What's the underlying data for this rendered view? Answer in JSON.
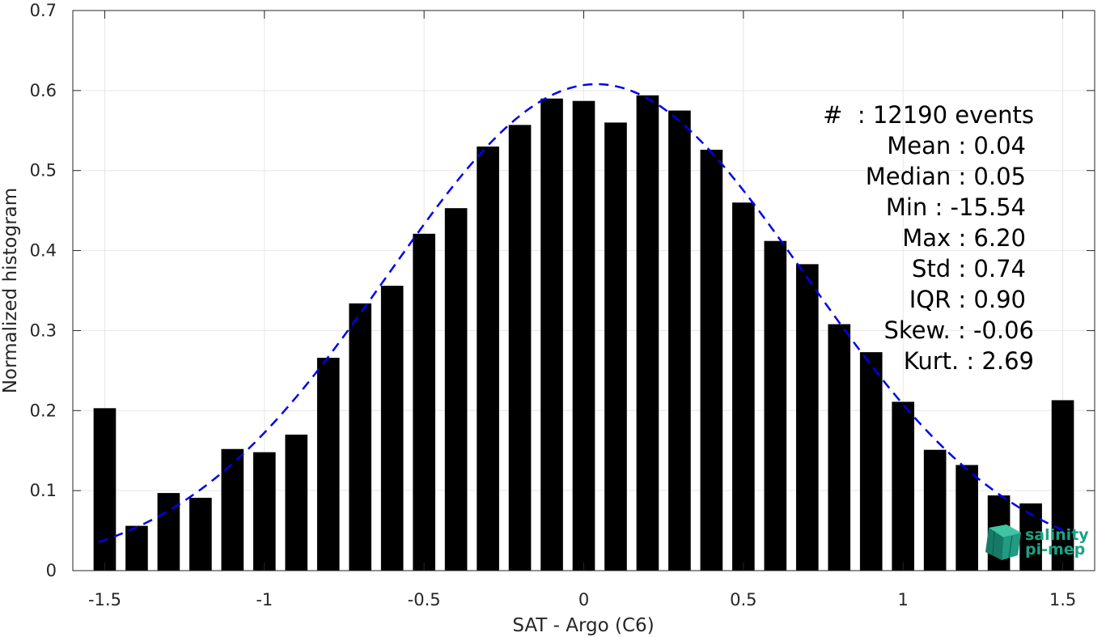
{
  "chart_data": {
    "type": "bar",
    "xlabel": "SAT - Argo (C6)",
    "ylabel": "Normalized histogram",
    "xlim": [
      -1.6,
      1.6
    ],
    "ylim": [
      0,
      0.7
    ],
    "xticks": [
      -1.5,
      -1,
      -0.5,
      0,
      0.5,
      1,
      1.5
    ],
    "xtick_labels": [
      "-1.5",
      "-1",
      "-0.5",
      "0",
      "0.5",
      "1",
      "1.5"
    ],
    "yticks": [
      0,
      0.1,
      0.2,
      0.3,
      0.4,
      0.5,
      0.6,
      0.7
    ],
    "ytick_labels": [
      "0",
      "0.1",
      "0.2",
      "0.3",
      "0.4",
      "0.5",
      "0.6",
      "0.7"
    ],
    "grid": true,
    "bar_color": "#000000",
    "bar_width": 0.07,
    "bars": [
      {
        "x": -1.5,
        "y": 0.203
      },
      {
        "x": -1.4,
        "y": 0.056
      },
      {
        "x": -1.3,
        "y": 0.097
      },
      {
        "x": -1.2,
        "y": 0.091
      },
      {
        "x": -1.1,
        "y": 0.152
      },
      {
        "x": -1.0,
        "y": 0.148
      },
      {
        "x": -0.9,
        "y": 0.17
      },
      {
        "x": -0.8,
        "y": 0.266
      },
      {
        "x": -0.7,
        "y": 0.334
      },
      {
        "x": -0.6,
        "y": 0.356
      },
      {
        "x": -0.5,
        "y": 0.421
      },
      {
        "x": -0.4,
        "y": 0.453
      },
      {
        "x": -0.3,
        "y": 0.53
      },
      {
        "x": -0.2,
        "y": 0.557
      },
      {
        "x": -0.1,
        "y": 0.59
      },
      {
        "x": 0.0,
        "y": 0.587
      },
      {
        "x": 0.1,
        "y": 0.56
      },
      {
        "x": 0.2,
        "y": 0.594
      },
      {
        "x": 0.3,
        "y": 0.575
      },
      {
        "x": 0.4,
        "y": 0.526
      },
      {
        "x": 0.5,
        "y": 0.46
      },
      {
        "x": 0.6,
        "y": 0.412
      },
      {
        "x": 0.7,
        "y": 0.383
      },
      {
        "x": 0.8,
        "y": 0.308
      },
      {
        "x": 0.9,
        "y": 0.273
      },
      {
        "x": 1.0,
        "y": 0.211
      },
      {
        "x": 1.1,
        "y": 0.151
      },
      {
        "x": 1.2,
        "y": 0.132
      },
      {
        "x": 1.3,
        "y": 0.094
      },
      {
        "x": 1.4,
        "y": 0.084
      },
      {
        "x": 1.5,
        "y": 0.213
      }
    ],
    "fit_curve": {
      "type": "gaussian",
      "mean": 0.04,
      "std": 0.655,
      "peak": 0.608,
      "x_range": [
        -1.52,
        1.52
      ],
      "color": "#0000ee",
      "line_style": "dashed"
    },
    "stats_box": {
      "lines": [
        "#  : 12190 events",
        "Mean : 0.04",
        "Median : 0.05",
        "Min : -15.54",
        "Max : 6.20",
        "Std : 0.74",
        "IQR : 0.90",
        "Skew. : -0.06",
        "Kurt. : 2.69"
      ],
      "placement": "top-right"
    }
  },
  "logo": {
    "line1": "salinity",
    "line2": "pi-mep",
    "color": "#1aa384"
  }
}
